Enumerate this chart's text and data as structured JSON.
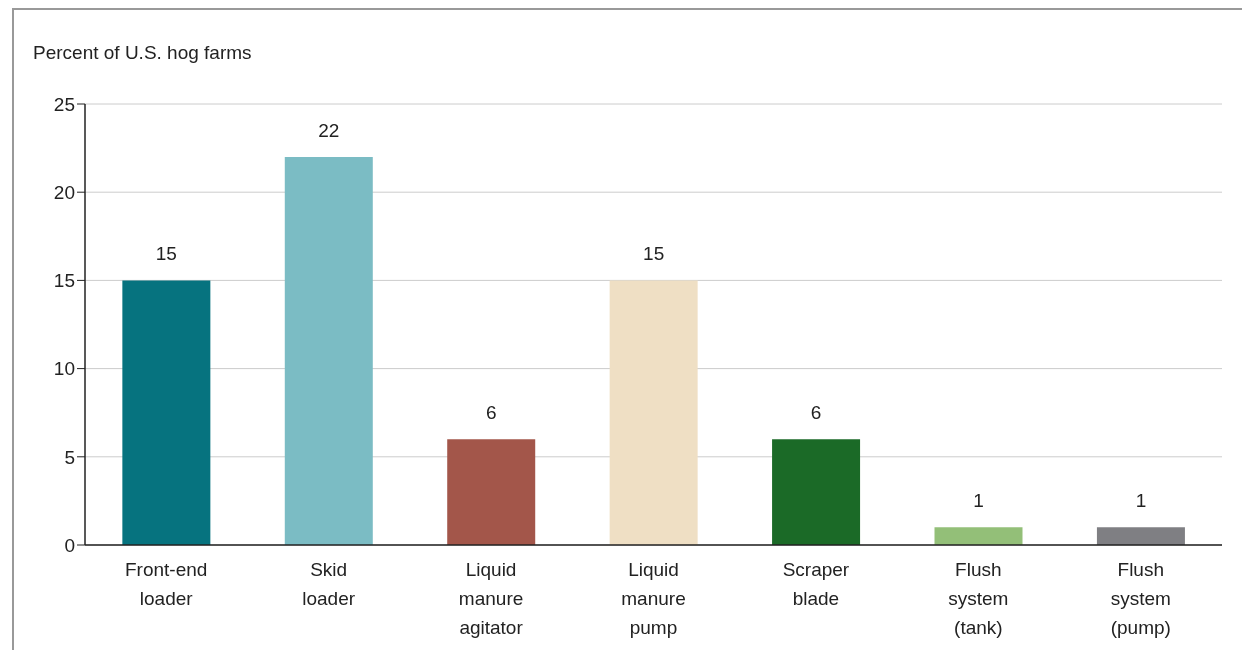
{
  "chart_data": {
    "type": "bar",
    "ylabel": "Percent of U.S. hog farms",
    "categories": [
      "Front-end loader",
      "Skid loader",
      "Liquid manure agitator",
      "Liquid manure pump",
      "Scraper blade",
      "Flush system (tank)",
      "Flush system (pump)"
    ],
    "values": [
      15,
      22,
      6,
      15,
      6,
      1,
      1
    ],
    "colors": [
      "#06737f",
      "#7bbcc4",
      "#a3564a",
      "#efdfc4",
      "#1b6a27",
      "#93bf78",
      "#7f7f83"
    ],
    "ylim": [
      0,
      25
    ],
    "yticks": [
      0,
      5,
      10,
      15,
      20,
      25
    ],
    "grid": "y",
    "data_labels": true
  }
}
